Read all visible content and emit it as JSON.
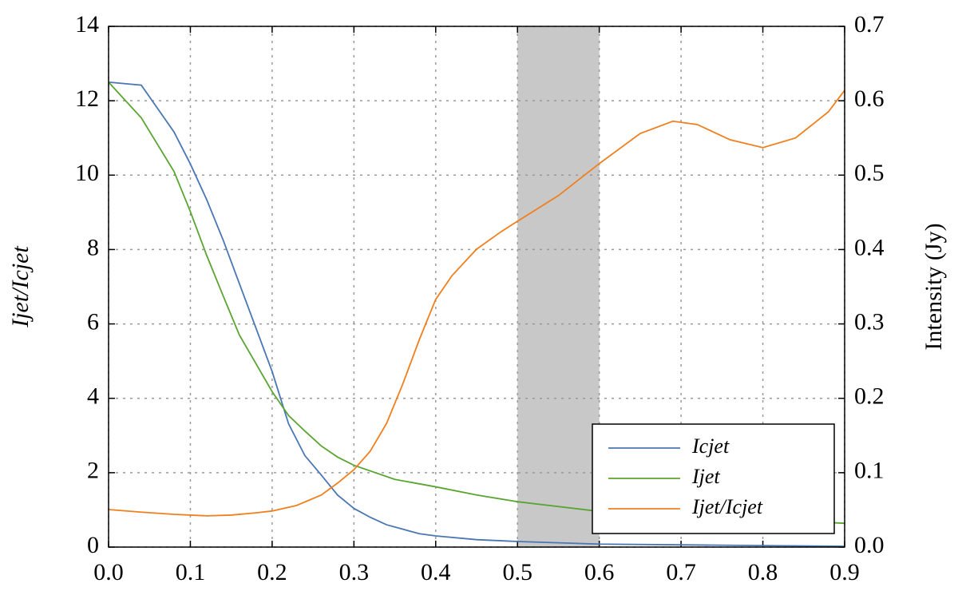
{
  "chart_data": {
    "type": "line",
    "ylabel": "Ijet/Icjet",
    "y2label": "Intensity (Jy)",
    "xlim": [
      0,
      0.9
    ],
    "xticks": [
      {
        "value": 0,
        "label": "0.0"
      },
      {
        "value": 0.1,
        "label": "0.1"
      },
      {
        "value": 0.2,
        "label": "0.2"
      },
      {
        "value": 0.3,
        "label": "0.3"
      },
      {
        "value": 0.4,
        "label": "0.4"
      },
      {
        "value": 0.5,
        "label": "0.5"
      },
      {
        "value": 0.6,
        "label": "0.6"
      },
      {
        "value": 0.7,
        "label": "0.7"
      },
      {
        "value": 0.8,
        "label": "0.8"
      },
      {
        "value": 0.9,
        "label": "0.9"
      }
    ],
    "ylim": [
      0,
      14
    ],
    "yticks": [
      0,
      2,
      4,
      6,
      8,
      10,
      12,
      14
    ],
    "y2lim": [
      0,
      0.7
    ],
    "y2ticks": [
      {
        "value": 0,
        "label": "0.0"
      },
      {
        "value": 0.1,
        "label": "0.1"
      },
      {
        "value": 0.2,
        "label": "0.2"
      },
      {
        "value": 0.3,
        "label": "0.3"
      },
      {
        "value": 0.4,
        "label": "0.4"
      },
      {
        "value": 0.5,
        "label": "0.5"
      },
      {
        "value": 0.6,
        "label": "0.6"
      },
      {
        "value": 0.7,
        "label": "0.7"
      }
    ],
    "grid": true,
    "legend": "lower right",
    "shaded_span": [
      0.5,
      0.6
    ],
    "shaded_color": "#c8c8c8",
    "series": [
      {
        "name": "Icjet",
        "color": "#4a76b4",
        "axis": "y2",
        "x": [
          0,
          0.04,
          0.08,
          0.1,
          0.12,
          0.14,
          0.16,
          0.18,
          0.2,
          0.22,
          0.24,
          0.26,
          0.28,
          0.3,
          0.32,
          0.34,
          0.36,
          0.38,
          0.4,
          0.45,
          0.5,
          0.6,
          0.7,
          0.8,
          0.9
        ],
        "values": [
          0.625,
          0.621,
          0.558,
          0.515,
          0.467,
          0.413,
          0.354,
          0.295,
          0.236,
          0.166,
          0.123,
          0.097,
          0.07,
          0.052,
          0.04,
          0.03,
          0.024,
          0.018,
          0.015,
          0.01,
          0.0075,
          0.004,
          0.003,
          0.002,
          0.001
        ]
      },
      {
        "name": "Ijet",
        "color": "#5aa532",
        "axis": "y2",
        "x": [
          0,
          0.04,
          0.08,
          0.1,
          0.12,
          0.14,
          0.16,
          0.18,
          0.2,
          0.22,
          0.24,
          0.26,
          0.28,
          0.3,
          0.35,
          0.4,
          0.45,
          0.5,
          0.6,
          0.7,
          0.8,
          0.9
        ],
        "values": [
          0.625,
          0.577,
          0.505,
          0.451,
          0.392,
          0.338,
          0.285,
          0.247,
          0.209,
          0.177,
          0.156,
          0.136,
          0.121,
          0.11,
          0.091,
          0.081,
          0.07,
          0.061,
          0.048,
          0.041,
          0.037,
          0.032
        ]
      },
      {
        "name": "Ijet/Icjet",
        "color": "#f07f1e",
        "x": [
          0,
          0.04,
          0.08,
          0.1,
          0.12,
          0.15,
          0.18,
          0.2,
          0.23,
          0.26,
          0.28,
          0.3,
          0.32,
          0.34,
          0.36,
          0.38,
          0.4,
          0.42,
          0.45,
          0.48,
          0.5,
          0.55,
          0.6,
          0.65,
          0.69,
          0.72,
          0.76,
          0.8,
          0.84,
          0.88,
          0.9
        ],
        "values": [
          1.01,
          0.94,
          0.88,
          0.86,
          0.84,
          0.86,
          0.92,
          0.97,
          1.12,
          1.4,
          1.72,
          2.08,
          2.58,
          3.33,
          4.4,
          5.58,
          6.66,
          7.3,
          8.01,
          8.48,
          8.76,
          9.45,
          10.31,
          11.12,
          11.45,
          11.36,
          10.95,
          10.74,
          11.0,
          11.7,
          12.28
        ]
      }
    ]
  }
}
